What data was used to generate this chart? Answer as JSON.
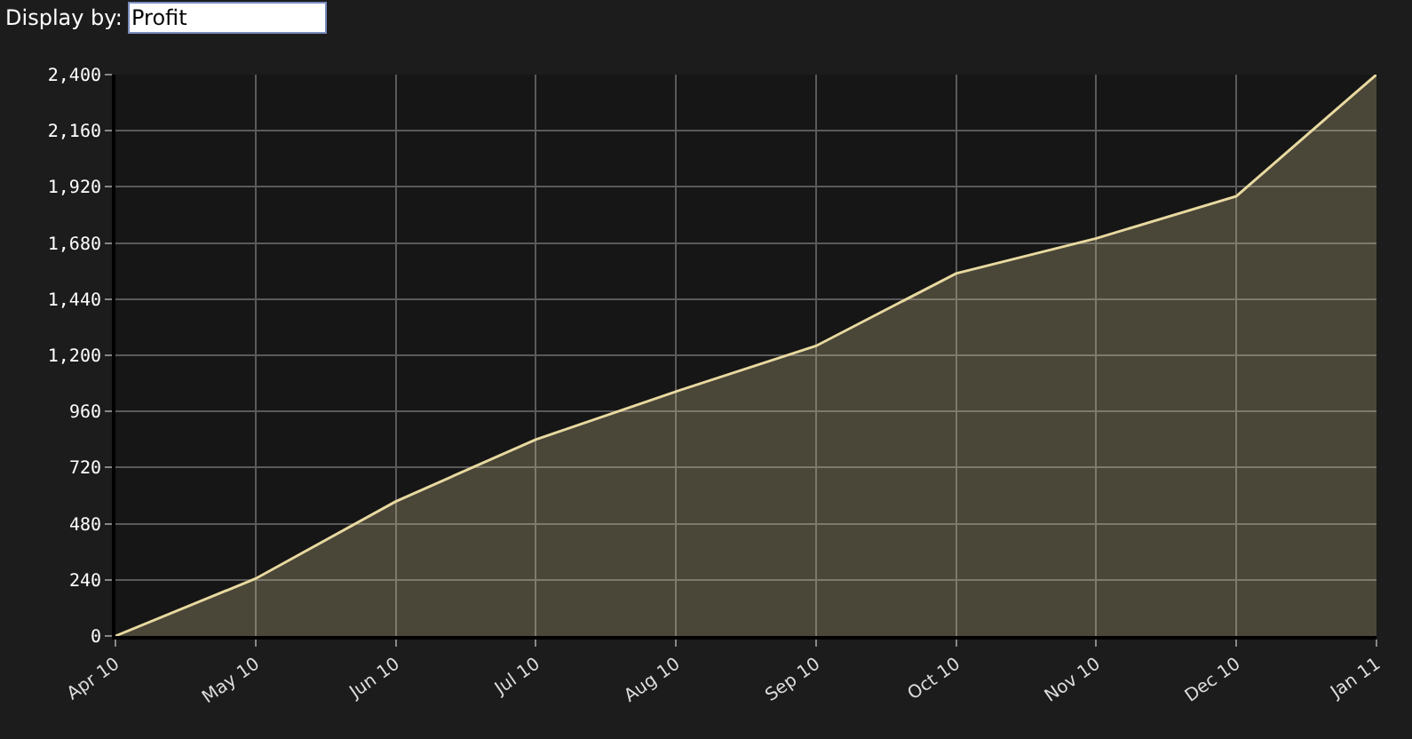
{
  "chart_data": {
    "type": "area",
    "categories": [
      "Apr 10",
      "May 10",
      "Jun 10",
      "Jul 10",
      "Aug 10",
      "Sep 10",
      "Oct 10",
      "Nov 10",
      "Dec 10",
      "Jan 11"
    ],
    "series": [
      {
        "color": "#e8d9a0",
        "values": [
          0,
          245,
          575,
          840,
          1045,
          1240,
          1550,
          1700,
          1880,
          2400
        ]
      }
    ],
    "ylim": [
      0,
      2400
    ],
    "yticks": [
      0,
      240,
      480,
      720,
      960,
      {
        "value": 1200,
        "label": "1,200"
      },
      {
        "value": 1440,
        "label": "1,440"
      },
      {
        "value": 1680,
        "label": "1,680"
      },
      {
        "value": 1920,
        "label": "1,920"
      },
      {
        "value": 2160,
        "label": "2,160"
      },
      {
        "value": 2400,
        "label": "2,400"
      }
    ],
    "grid": true,
    "marker": "none",
    "line_style": "solid",
    "annotations": [
      "Display by:",
      "Profit"
    ]
  }
}
